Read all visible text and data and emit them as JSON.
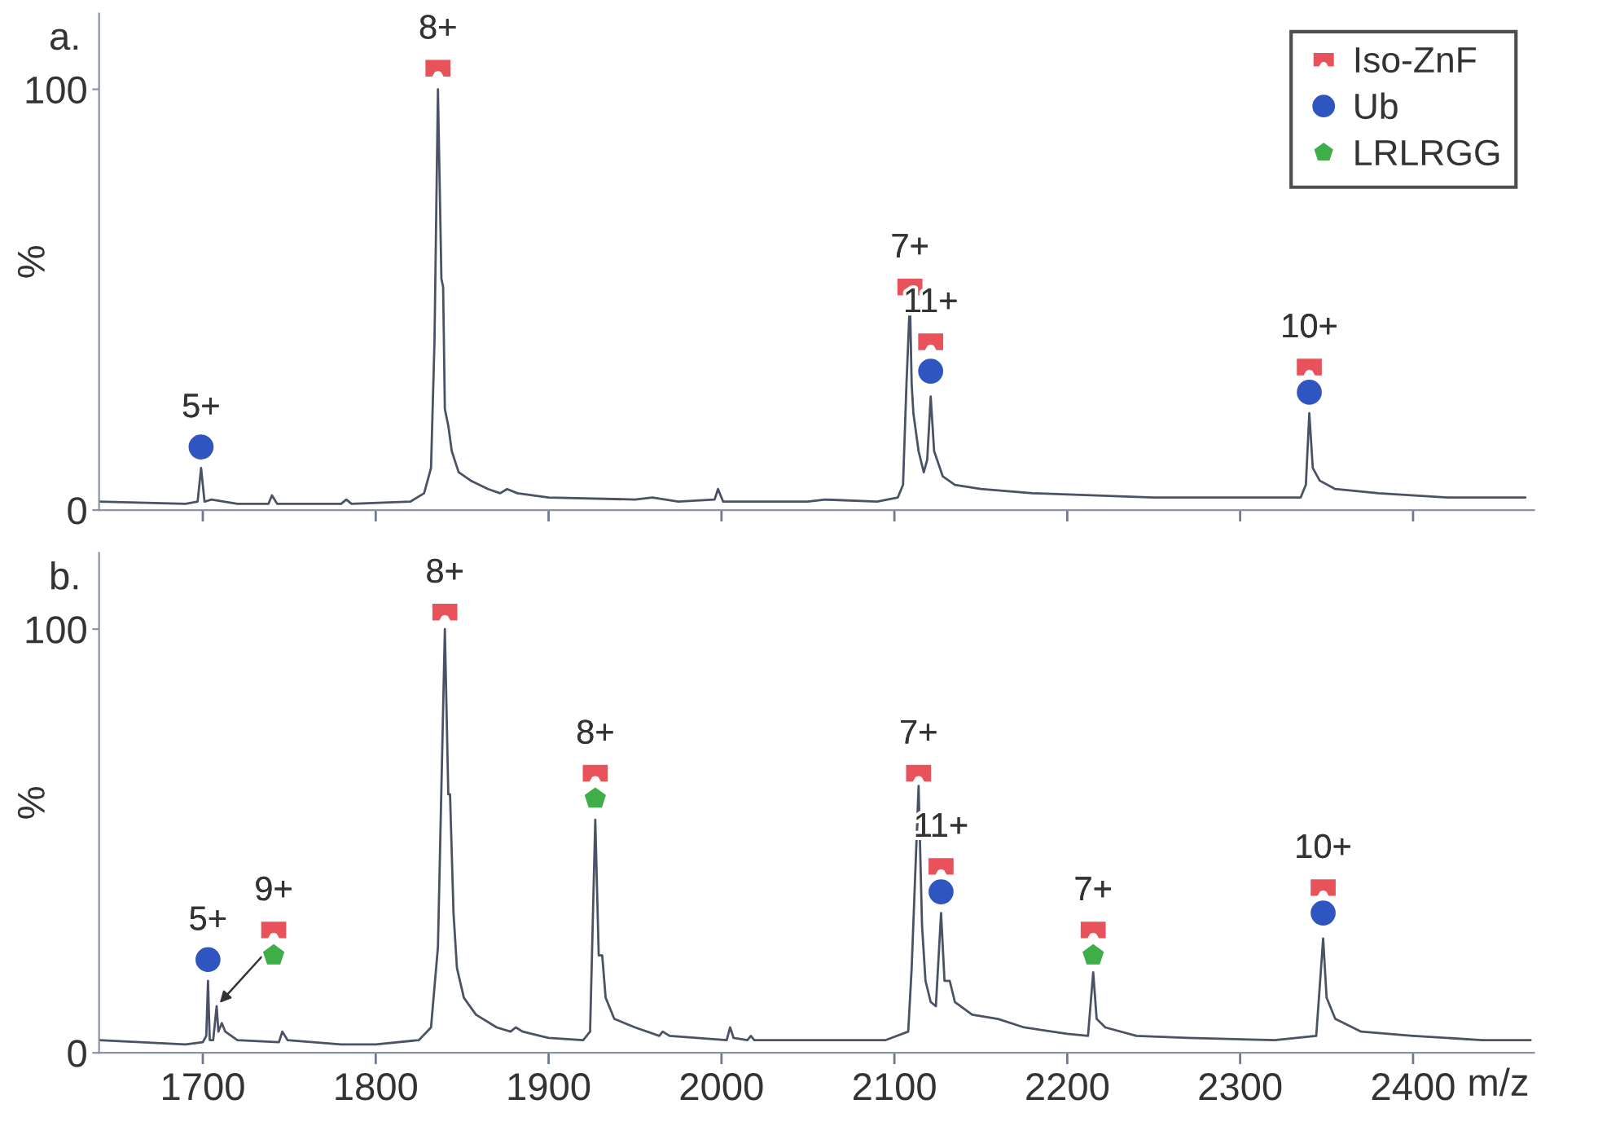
{
  "chart_data": [
    {
      "type": "line",
      "title": "a.",
      "ylabel": "%",
      "xlim": [
        1640,
        2470
      ],
      "ylim": [
        0,
        118
      ],
      "yticks": [
        0,
        100
      ],
      "xticks": [
        {
          "value": 1700,
          "label": null
        },
        {
          "value": 1800,
          "label": null
        },
        {
          "value": 1900,
          "label": null
        },
        {
          "value": 2000,
          "label": null
        },
        {
          "value": 2100,
          "label": null
        },
        {
          "value": 2200,
          "label": null
        },
        {
          "value": 2300,
          "label": null
        },
        {
          "value": 2400,
          "label": null
        }
      ],
      "tick_labels": "y",
      "legend": "top right",
      "series": [
        {
          "color": "#4a5366",
          "x": [
            1640,
            1690,
            1697,
            1699,
            1701,
            1705,
            1720,
            1738,
            1740,
            1743,
            1780,
            1783,
            1786,
            1820,
            1828,
            1832,
            1834,
            1836,
            1838,
            1839,
            1840,
            1842,
            1844,
            1848,
            1855,
            1865,
            1872,
            1876,
            1882,
            1900,
            1950,
            1960,
            1975,
            1996,
            1998,
            2001,
            2050,
            2060,
            2090,
            2102,
            2105,
            2107,
            2109,
            2110,
            2111,
            2114,
            2117,
            2119,
            2121,
            2123,
            2128,
            2135,
            2150,
            2180,
            2250,
            2300,
            2335,
            2338,
            2340,
            2342,
            2346,
            2355,
            2380,
            2420,
            2465
          ],
          "values": [
            2,
            1.5,
            2,
            10,
            2,
            2.5,
            1.5,
            1.5,
            3.5,
            1.5,
            1.5,
            2.5,
            1.5,
            2,
            4,
            10,
            40,
            100,
            55,
            53,
            24,
            20,
            14,
            9,
            7,
            5,
            4,
            5,
            4,
            3,
            2.5,
            3,
            2,
            2.5,
            5,
            2,
            2,
            2.5,
            2,
            3,
            6,
            30,
            50,
            30,
            23,
            14,
            9,
            12,
            27,
            14,
            8,
            6,
            5,
            4,
            3,
            3,
            3,
            6,
            23,
            10,
            7,
            5,
            4,
            3,
            3
          ]
        },
        {
          "type": "scatter",
          "name": "Iso-ZnF",
          "marker": "square",
          "color": "#e8525a",
          "x": [
            1836,
            2109,
            2121,
            2340
          ],
          "values": [
            105,
            53,
            40,
            34
          ]
        },
        {
          "type": "scatter",
          "name": "Ub",
          "marker": "circle",
          "color": "#2f56c0",
          "x": [
            1699,
            2121,
            2340
          ],
          "values": [
            15,
            33,
            28
          ]
        },
        {
          "type": "scatter",
          "name": "LRLRGG",
          "color": "#3fae49"
        }
      ],
      "annotations": [
        {
          "text": "5+",
          "x": 1699,
          "y": 15
        },
        {
          "text": "8+",
          "x": 1836,
          "y": 105
        },
        {
          "text": "7+",
          "x": 2109,
          "y": 53
        },
        {
          "text": "11+",
          "x": 2121,
          "y": 40
        },
        {
          "text": "10+",
          "x": 2340,
          "y": 34
        }
      ]
    },
    {
      "type": "line",
      "title": "b.",
      "ylabel": "%",
      "xlabel": "m/z",
      "xlim": [
        1640,
        2470
      ],
      "ylim": [
        0,
        118
      ],
      "yticks": [
        0,
        100
      ],
      "xticks": [
        1700,
        1800,
        1900,
        2000,
        2100,
        2200,
        2300,
        2400
      ],
      "series": [
        {
          "color": "#4a5366",
          "x": [
            1640,
            1690,
            1700,
            1702,
            1703,
            1704,
            1706,
            1708,
            1709,
            1711,
            1713,
            1720,
            1744,
            1746,
            1749,
            1780,
            1800,
            1825,
            1832,
            1836,
            1840,
            1842,
            1843,
            1845,
            1847,
            1851,
            1858,
            1870,
            1878,
            1881,
            1885,
            1900,
            1920,
            1924,
            1927,
            1929,
            1931,
            1933,
            1938,
            1950,
            1964,
            1966,
            1970,
            2003,
            2005,
            2007,
            2015,
            2017,
            2019,
            2060,
            2095,
            2108,
            2110,
            2114,
            2116,
            2118,
            2121,
            2124,
            2127,
            2129,
            2132,
            2135,
            2145,
            2160,
            2175,
            2200,
            2212,
            2215,
            2217,
            2222,
            2240,
            2270,
            2320,
            2344,
            2348,
            2350,
            2355,
            2370,
            2400,
            2440,
            2468
          ],
          "values": [
            3,
            2,
            2.5,
            4,
            17,
            3,
            3,
            11,
            5,
            7,
            5,
            3,
            2.5,
            5,
            3,
            2,
            2,
            3,
            6,
            25,
            100,
            61,
            61,
            33,
            20,
            13,
            9,
            6,
            5,
            6,
            5,
            3.5,
            3,
            5,
            55,
            23,
            23,
            13,
            8,
            6,
            4,
            5,
            4,
            3,
            6,
            3.5,
            3,
            4,
            3,
            3,
            3,
            5,
            20,
            63,
            30,
            17,
            12,
            11,
            33,
            17,
            17,
            12,
            9,
            8,
            6,
            4.5,
            4,
            19,
            8,
            6,
            4,
            3.5,
            3,
            4,
            27,
            13,
            8,
            5,
            4,
            3,
            3
          ]
        },
        {
          "type": "scatter",
          "marker": "square",
          "color": "#e8525a",
          "x": [
            1741,
            1840,
            1927,
            2114,
            2127,
            2215,
            2348
          ],
          "values": [
            29,
            104,
            66,
            66,
            44,
            29,
            39
          ]
        },
        {
          "type": "scatter",
          "marker": "circle",
          "color": "#2f56c0",
          "x": [
            1703,
            2127,
            2348
          ],
          "values": [
            22,
            38,
            33
          ]
        },
        {
          "type": "scatter",
          "color": "#3fae49",
          "x": [
            1741,
            1927,
            2215
          ],
          "values": [
            23,
            60,
            23
          ]
        }
      ],
      "annotations": [
        {
          "text": "5+",
          "x": 1703,
          "y": 22
        },
        {
          "text": "9+",
          "x": 1741,
          "y": 29
        },
        {
          "text": "8+",
          "x": 1840,
          "y": 104
        },
        {
          "text": "8+",
          "x": 1927,
          "y": 66
        },
        {
          "text": "7+",
          "x": 2114,
          "y": 66
        },
        {
          "text": "11+",
          "x": 2127,
          "y": 44
        },
        {
          "text": "7+",
          "x": 2215,
          "y": 29
        },
        {
          "text": "10+",
          "x": 2348,
          "y": 39
        }
      ]
    }
  ]
}
